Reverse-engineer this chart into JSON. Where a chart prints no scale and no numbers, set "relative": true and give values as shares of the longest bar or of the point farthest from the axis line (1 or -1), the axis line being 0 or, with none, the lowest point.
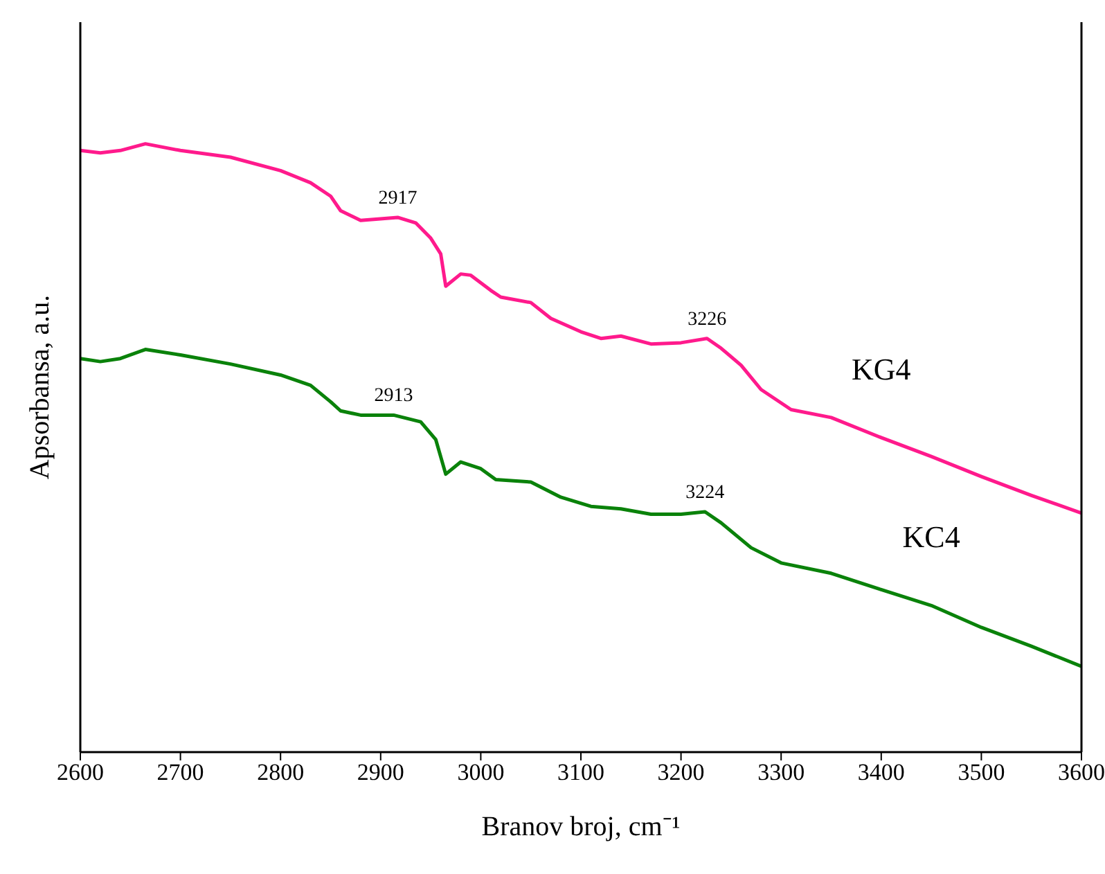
{
  "chart_data": {
    "type": "line",
    "relative": true,
    "xlabel": "Branov broj, cm⁻¹",
    "ylabel": "Apsorbansa, a.u.",
    "xlim": [
      2600,
      3600
    ],
    "xticks": [
      2600,
      2700,
      2800,
      2900,
      3000,
      3100,
      3200,
      3300,
      3400,
      3500,
      3600
    ],
    "marker": "none",
    "line_style": "solid",
    "series": [
      {
        "name": "KG4",
        "color": "#ff1a8c",
        "x": [
          2600,
          2620,
          2640,
          2665,
          2700,
          2750,
          2800,
          2830,
          2850,
          2860,
          2880,
          2917,
          2935,
          2950,
          2960,
          2965,
          2980,
          2990,
          3010,
          3020,
          3050,
          3070,
          3100,
          3120,
          3140,
          3170,
          3200,
          3226,
          3240,
          3260,
          3280,
          3310,
          3350,
          3400,
          3450,
          3500,
          3550,
          3600
        ],
        "values": [
          0.989,
          0.985,
          0.989,
          1,
          0.989,
          0.978,
          0.956,
          0.936,
          0.914,
          0.89,
          0.874,
          0.879,
          0.87,
          0.845,
          0.819,
          0.766,
          0.786,
          0.784,
          0.759,
          0.748,
          0.739,
          0.713,
          0.691,
          0.68,
          0.684,
          0.671,
          0.673,
          0.68,
          0.664,
          0.636,
          0.596,
          0.563,
          0.55,
          0.517,
          0.486,
          0.453,
          0.422,
          0.393
        ]
      },
      {
        "name": "KC4",
        "color": "#0a820a",
        "x": [
          2600,
          2620,
          2640,
          2665,
          2700,
          2750,
          2800,
          2830,
          2850,
          2860,
          2880,
          2913,
          2940,
          2955,
          2965,
          2980,
          3000,
          3015,
          3050,
          3080,
          3110,
          3140,
          3170,
          3200,
          3224,
          3240,
          3270,
          3300,
          3350,
          3400,
          3450,
          3500,
          3550,
          3600
        ],
        "values": [
          0.647,
          0.642,
          0.647,
          0.662,
          0.653,
          0.638,
          0.62,
          0.603,
          0.576,
          0.561,
          0.554,
          0.554,
          0.543,
          0.514,
          0.457,
          0.477,
          0.466,
          0.448,
          0.444,
          0.419,
          0.404,
          0.4,
          0.391,
          0.391,
          0.395,
          0.377,
          0.336,
          0.311,
          0.294,
          0.267,
          0.241,
          0.205,
          0.174,
          0.141
        ]
      }
    ],
    "annotations": [
      {
        "text": "2917",
        "x": 2917,
        "y": 0.879
      },
      {
        "text": "3226",
        "x": 3226,
        "y": 0.68
      },
      {
        "text": "2913",
        "x": 2913,
        "y": 0.554
      },
      {
        "text": "3224",
        "x": 3224,
        "y": 0.395
      }
    ]
  }
}
